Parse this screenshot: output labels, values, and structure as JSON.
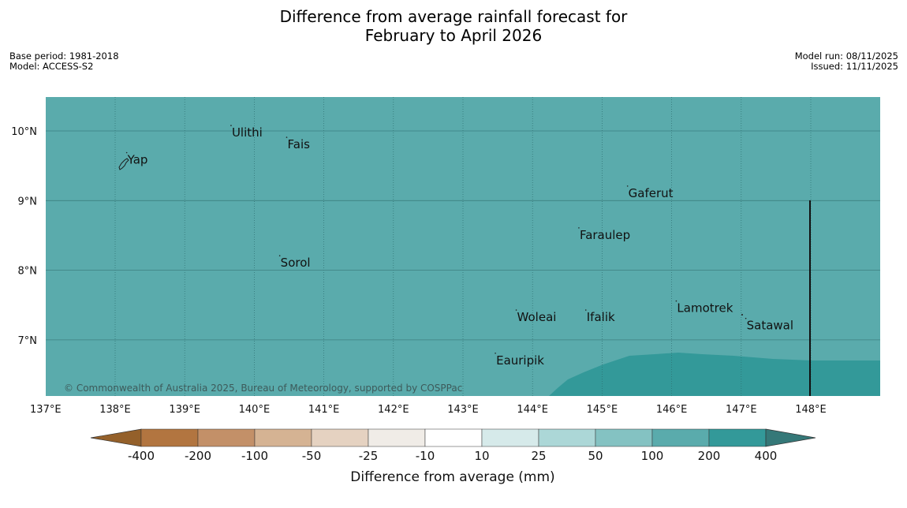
{
  "title": {
    "line1": "Difference from average rainfall forecast for",
    "line2": "February to April 2026"
  },
  "meta_left": {
    "base_period": "Base period: 1981-2018",
    "model": "Model: ACCESS-S2"
  },
  "meta_right": {
    "model_run": "Model run: 08/11/2025",
    "issued": "Issued: 11/11/2025"
  },
  "map": {
    "lon_range": [
      137,
      149
    ],
    "lat_range": [
      6.2,
      10.5
    ],
    "lon_ticks": [
      "137°E",
      "138°E",
      "139°E",
      "140°E",
      "141°E",
      "142°E",
      "143°E",
      "144°E",
      "145°E",
      "146°E",
      "147°E",
      "148°E"
    ],
    "lat_ticks": [
      "10°N",
      "9°N",
      "8°N",
      "7°N"
    ],
    "places": [
      {
        "name": "Yap",
        "lon": 138.2,
        "lat": 9.53
      },
      {
        "name": "Ulithi",
        "lon": 139.7,
        "lat": 9.92
      },
      {
        "name": "Fais",
        "lon": 140.5,
        "lat": 9.75
      },
      {
        "name": "Gaferut",
        "lon": 145.4,
        "lat": 9.05
      },
      {
        "name": "Faraulep",
        "lon": 144.7,
        "lat": 8.45
      },
      {
        "name": "Sorol",
        "lon": 140.4,
        "lat": 8.05
      },
      {
        "name": "Lamotrek",
        "lon": 146.1,
        "lat": 7.4
      },
      {
        "name": "Woleai",
        "lon": 143.8,
        "lat": 7.27
      },
      {
        "name": "Ifalik",
        "lon": 144.8,
        "lat": 7.27
      },
      {
        "name": "Satawal",
        "lon": 147.1,
        "lat": 7.15
      },
      {
        "name": "Eauripik",
        "lon": 143.5,
        "lat": 6.65
      }
    ],
    "background_category": "100 to 200",
    "copyright": "© Commonwealth of Australia 2025, Bureau of Meteorology, supported by COSPPac"
  },
  "colorbar": {
    "title": "Difference from average (mm)",
    "ticks": [
      "-400",
      "-200",
      "-100",
      "-50",
      "-25",
      "-10",
      "10",
      "25",
      "50",
      "100",
      "200",
      "400"
    ],
    "colors": {
      "below_min": "#94602a",
      "bins": [
        "#b27540",
        "#c39068",
        "#d5b393",
        "#e5d2c1",
        "#f0ece7",
        "#ffffff",
        "#d6eaea",
        "#acd7d7",
        "#84c2c2",
        "#5aabac",
        "#339999"
      ],
      "above_max": "#357878"
    }
  }
}
